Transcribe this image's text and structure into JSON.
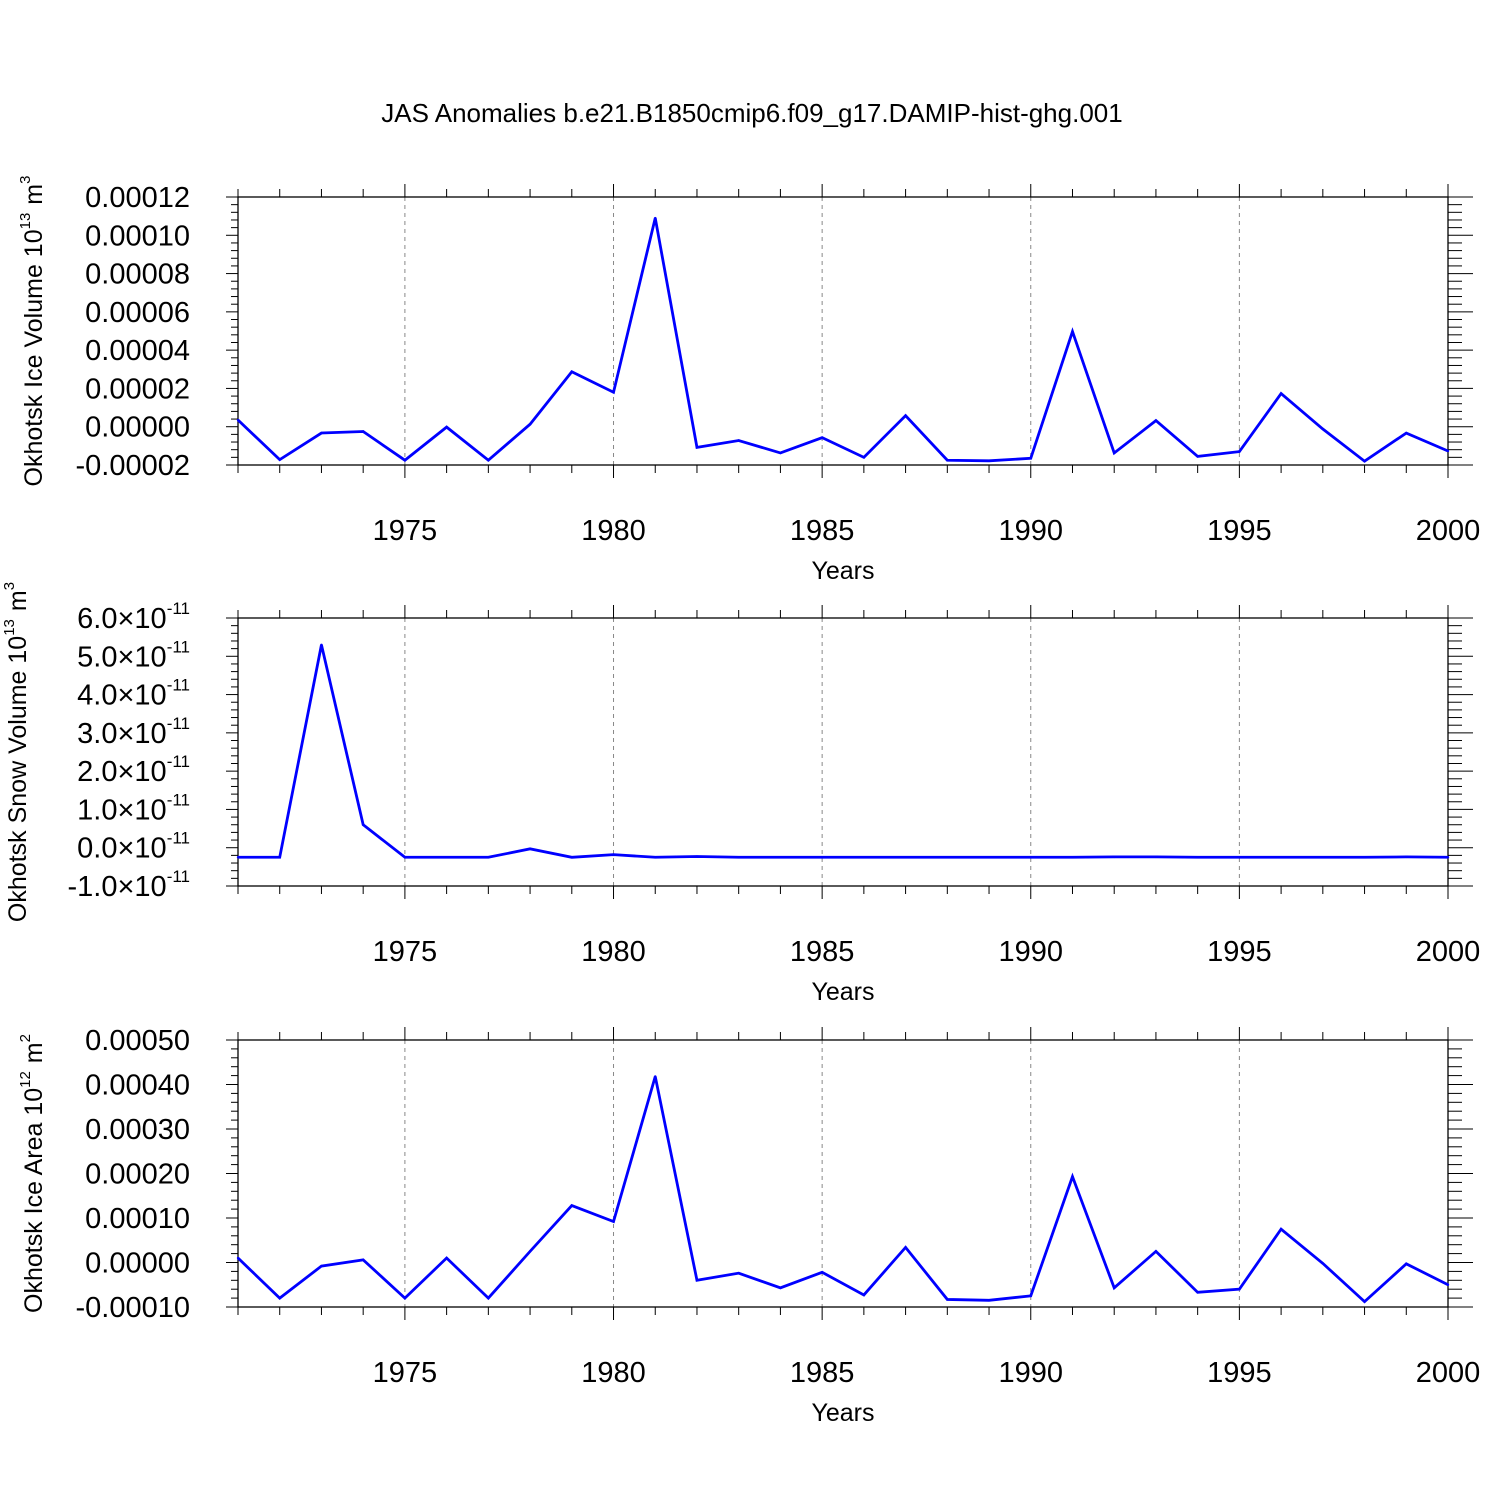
{
  "title": "JAS Anomalies b.e21.B1850cmip6.f09_g17.DAMIP-hist-ghg.001",
  "colors": {
    "line": "#0000ff",
    "axis": "#000000",
    "grid": "#888888"
  },
  "chart_data": [
    {
      "type": "line",
      "ylabel_main": "Okhotsk Ice Volume 10",
      "ylabel_exp": "13",
      "ylabel_unit": "m",
      "ylabel_unit_exp": "3",
      "xlabel": "Years",
      "xlim": [
        1971,
        2000
      ],
      "ylim": [
        -2e-05,
        0.00012
      ],
      "x_ticks": [
        1975,
        1980,
        1985,
        1990,
        1995,
        2000
      ],
      "x_tick_labels": [
        "1975",
        "1980",
        "1985",
        "1990",
        "1995",
        "2000"
      ],
      "y_tick_values": [
        -2e-05,
        0.0,
        2e-05,
        4e-05,
        6e-05,
        8e-05,
        0.0001,
        0.00012
      ],
      "y_tick_labels": [
        "-0.00002",
        "0.00000",
        "0.00002",
        "0.00004",
        "0.00006",
        "0.00008",
        "0.00010",
        "0.00012"
      ],
      "x": [
        1971,
        1972,
        1973,
        1974,
        1975,
        1976,
        1977,
        1978,
        1979,
        1980,
        1981,
        1982,
        1983,
        1984,
        1985,
        1986,
        1987,
        1988,
        1989,
        1990,
        1991,
        1992,
        1993,
        1994,
        1995,
        1996,
        1997,
        1998,
        1999,
        2000
      ],
      "values": [
        3.5e-06,
        -1.72e-05,
        -3.3e-06,
        -2.5e-06,
        -1.75e-05,
        -2e-07,
        -1.75e-05,
        1.3e-06,
        2.87e-05,
        1.8e-05,
        0.000109,
        -1.08e-05,
        -7.2e-06,
        -1.37e-05,
        -5.7e-06,
        -1.6e-05,
        5.8e-06,
        -1.75e-05,
        -1.78e-05,
        -1.65e-05,
        4.97e-05,
        -1.37e-05,
        3.2e-06,
        -1.55e-05,
        -1.3e-05,
        1.73e-05,
        -1.2e-06,
        -1.8e-05,
        -3.3e-06,
        -1.27e-05
      ]
    },
    {
      "type": "line",
      "ylabel_main": "Okhotsk Snow Volume 10",
      "ylabel_exp": "13",
      "ylabel_unit": "m",
      "ylabel_unit_exp": "3",
      "xlabel": "Years",
      "xlim": [
        1971,
        2000
      ],
      "ylim": [
        -1e-11,
        6e-11
      ],
      "x_ticks": [
        1975,
        1980,
        1985,
        1990,
        1995,
        2000
      ],
      "x_tick_labels": [
        "1975",
        "1980",
        "1985",
        "1990",
        "1995",
        "2000"
      ],
      "y_tick_values": [
        -1e-11,
        0.0,
        1e-11,
        2e-11,
        3e-11,
        4e-11,
        5e-11,
        6e-11
      ],
      "y_tick_mantissa": [
        "-1.0",
        "0.0",
        "1.0",
        "2.0",
        "3.0",
        "4.0",
        "5.0",
        "6.0"
      ],
      "y_tick_times": "×10",
      "y_tick_exp": "-11",
      "x": [
        1971,
        1972,
        1973,
        1974,
        1975,
        1976,
        1977,
        1978,
        1979,
        1980,
        1981,
        1982,
        1983,
        1984,
        1985,
        1986,
        1987,
        1988,
        1989,
        1990,
        1991,
        1992,
        1993,
        1994,
        1995,
        1996,
        1997,
        1998,
        1999,
        2000
      ],
      "values": [
        -2.5e-12,
        -2.5e-12,
        5.3e-11,
        6e-12,
        -2.5e-12,
        -2.5e-12,
        -2.5e-12,
        -3e-13,
        -2.5e-12,
        -1.8e-12,
        -2.5e-12,
        -2.3e-12,
        -2.5e-12,
        -2.5e-12,
        -2.5e-12,
        -2.5e-12,
        -2.5e-12,
        -2.5e-12,
        -2.5e-12,
        -2.5e-12,
        -2.5e-12,
        -2.4e-12,
        -2.4e-12,
        -2.5e-12,
        -2.5e-12,
        -2.5e-12,
        -2.5e-12,
        -2.5e-12,
        -2.4e-12,
        -2.5e-12
      ]
    },
    {
      "type": "line",
      "ylabel_main": "Okhotsk Ice Area 10",
      "ylabel_exp": "12",
      "ylabel_unit": "m",
      "ylabel_unit_exp": "2",
      "xlabel": "Years",
      "xlim": [
        1971,
        2000
      ],
      "ylim": [
        -0.0001,
        0.0005
      ],
      "x_ticks": [
        1975,
        1980,
        1985,
        1990,
        1995,
        2000
      ],
      "x_tick_labels": [
        "1975",
        "1980",
        "1985",
        "1990",
        "1995",
        "2000"
      ],
      "y_tick_values": [
        -0.0001,
        0.0,
        0.0001,
        0.0002,
        0.0003,
        0.0004,
        0.0005
      ],
      "y_tick_labels": [
        "-0.00010",
        "0.00000",
        "0.00010",
        "0.00020",
        "0.00030",
        "0.00040",
        "0.00050"
      ],
      "x": [
        1971,
        1972,
        1973,
        1974,
        1975,
        1976,
        1977,
        1978,
        1979,
        1980,
        1981,
        1982,
        1983,
        1984,
        1985,
        1986,
        1987,
        1988,
        1989,
        1990,
        1991,
        1992,
        1993,
        1994,
        1995,
        1996,
        1997,
        1998,
        1999,
        2000
      ],
      "values": [
        1e-05,
        -8e-05,
        -8e-06,
        6e-06,
        -8e-05,
        1e-05,
        -8e-05,
        2.5e-05,
        0.000128,
        9.2e-05,
        0.000418,
        -4e-05,
        -2.4e-05,
        -5.7e-05,
        -2.2e-05,
        -7.3e-05,
        3.4e-05,
        -8.3e-05,
        -8.5e-05,
        -7.5e-05,
        0.000193,
        -5.7e-05,
        2.5e-05,
        -6.7e-05,
        -6e-05,
        7.5e-05,
        -2e-06,
        -8.8e-05,
        -3e-06,
        -5e-05
      ]
    }
  ]
}
